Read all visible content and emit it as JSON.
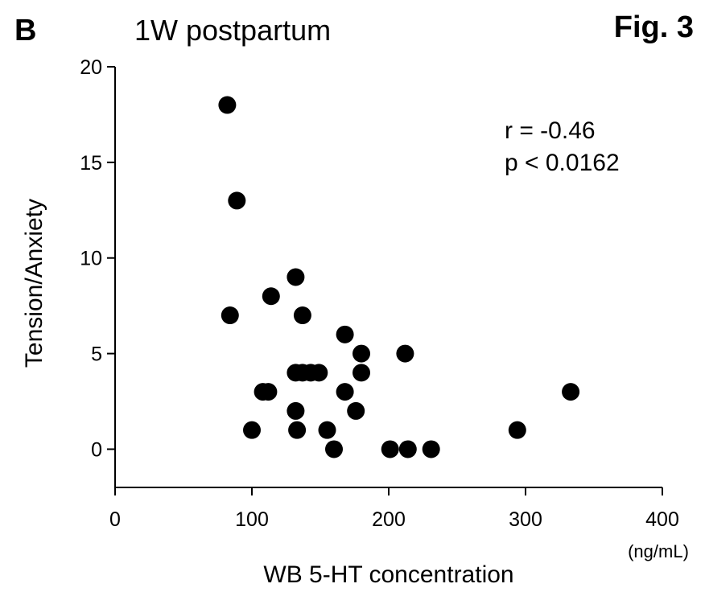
{
  "panel_label": "B",
  "figure_label": "Fig. 3",
  "chart_data": {
    "type": "scatter",
    "title": "1W postpartum",
    "xlabel": "WB 5-HT concentration",
    "xunit": "(ng/mL)",
    "ylabel": "Tension/Anxiety",
    "xlim": [
      0,
      400
    ],
    "ylim": [
      -2,
      20
    ],
    "xticks": [
      0,
      100,
      200,
      300,
      400
    ],
    "yticks": [
      0,
      5,
      10,
      15,
      20
    ],
    "grid": false,
    "annotations": [
      "r = -0.46",
      "p < 0.0162"
    ],
    "point_color": "#000000",
    "points": [
      {
        "x": 82,
        "y": 18
      },
      {
        "x": 89,
        "y": 13
      },
      {
        "x": 84,
        "y": 7
      },
      {
        "x": 132,
        "y": 9
      },
      {
        "x": 114,
        "y": 8
      },
      {
        "x": 137,
        "y": 7
      },
      {
        "x": 168,
        "y": 6
      },
      {
        "x": 180,
        "y": 5
      },
      {
        "x": 212,
        "y": 5
      },
      {
        "x": 132,
        "y": 4
      },
      {
        "x": 137,
        "y": 4
      },
      {
        "x": 143,
        "y": 4
      },
      {
        "x": 149,
        "y": 4
      },
      {
        "x": 180,
        "y": 4
      },
      {
        "x": 108,
        "y": 3
      },
      {
        "x": 112,
        "y": 3
      },
      {
        "x": 168,
        "y": 3
      },
      {
        "x": 333,
        "y": 3
      },
      {
        "x": 132,
        "y": 2
      },
      {
        "x": 176,
        "y": 2
      },
      {
        "x": 100,
        "y": 1
      },
      {
        "x": 133,
        "y": 1
      },
      {
        "x": 155,
        "y": 1
      },
      {
        "x": 294,
        "y": 1
      },
      {
        "x": 160,
        "y": 0
      },
      {
        "x": 201,
        "y": 0
      },
      {
        "x": 214,
        "y": 0
      },
      {
        "x": 231,
        "y": 0
      }
    ]
  }
}
